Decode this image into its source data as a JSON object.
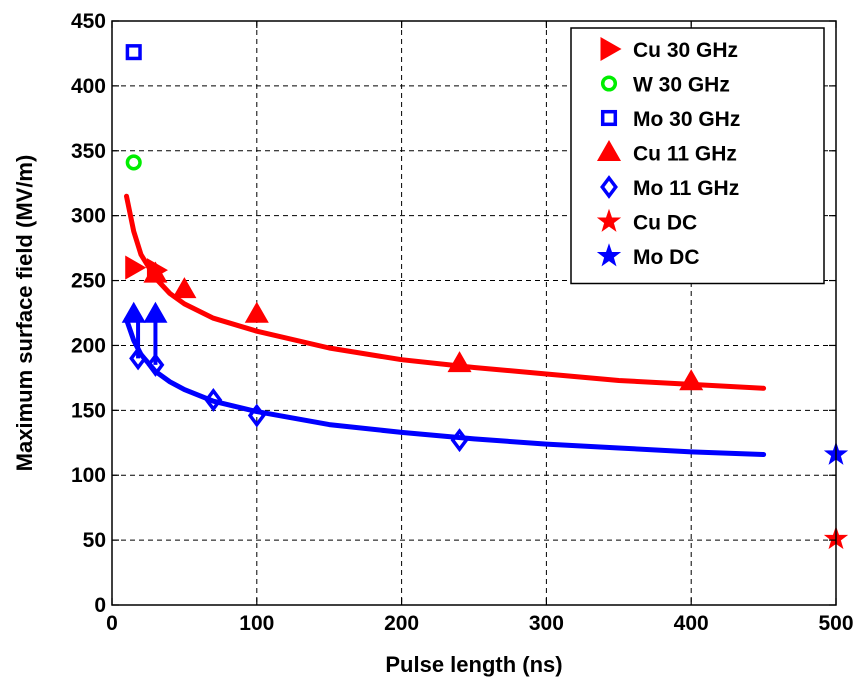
{
  "chart_data": {
    "type": "scatter",
    "title": "",
    "xlabel": "Pulse length (ns)",
    "ylabel": "Maximum surface field (MV/m)",
    "xlim": [
      0,
      500
    ],
    "ylim": [
      0,
      450
    ],
    "xticks": [
      0,
      100,
      200,
      300,
      400,
      500
    ],
    "yticks": [
      0,
      50,
      100,
      150,
      200,
      250,
      300,
      350,
      400,
      450
    ],
    "grid": true,
    "legend_position": "top-right",
    "series": [
      {
        "name": "Cu 30 GHz",
        "marker": "triangle-right",
        "color": "#ff0000",
        "filled": true,
        "x": [
          15,
          30
        ],
        "y": [
          260,
          258
        ]
      },
      {
        "name": "W 30 GHz",
        "marker": "circle",
        "color": "#00ee00",
        "filled": false,
        "x": [
          15
        ],
        "y": [
          341
        ]
      },
      {
        "name": "Mo 30 GHz",
        "marker": "square",
        "color": "#0000ff",
        "filled": false,
        "x": [
          15
        ],
        "y": [
          426
        ]
      },
      {
        "name": "Cu 11 GHz",
        "marker": "triangle-up",
        "color": "#ff0000",
        "filled": true,
        "x": [
          30,
          50,
          100,
          240,
          400
        ],
        "y": [
          255,
          243,
          224,
          186,
          172
        ]
      },
      {
        "name": "Mo 11 GHz",
        "marker": "diamond",
        "color": "#0000ff",
        "filled": false,
        "x": [
          18,
          30,
          70,
          100,
          240
        ],
        "y": [
          190,
          185,
          158,
          146,
          127
        ]
      },
      {
        "name": "Cu DC",
        "marker": "star",
        "color": "#ff0000",
        "filled": true,
        "x": [
          500
        ],
        "y": [
          51
        ]
      },
      {
        "name": "Mo DC",
        "marker": "star",
        "color": "#0000ff",
        "filled": true,
        "x": [
          500
        ],
        "y": [
          116
        ]
      }
    ],
    "extra_markers": [
      {
        "marker": "triangle-up",
        "color": "#0000ff",
        "filled": true,
        "x": [
          15,
          30
        ],
        "y": [
          224,
          224
        ]
      }
    ],
    "arrows": [
      {
        "color": "#0000ff",
        "x": 18,
        "y_from": 190,
        "y_to": 224
      },
      {
        "color": "#0000ff",
        "x": 30,
        "y_from": 185,
        "y_to": 224
      }
    ],
    "fit_curves": [
      {
        "color": "#ff0000",
        "x": [
          10,
          15,
          20,
          30,
          40,
          50,
          70,
          100,
          150,
          200,
          250,
          300,
          350,
          400,
          450
        ],
        "y": [
          315,
          288,
          270,
          252,
          240,
          232,
          221,
          211,
          198,
          189,
          183,
          178,
          173,
          170,
          167
        ]
      },
      {
        "color": "#0000ff",
        "x": [
          10,
          15,
          20,
          30,
          40,
          50,
          70,
          100,
          150,
          200,
          250,
          300,
          350,
          400,
          450
        ],
        "y": [
          220,
          204,
          193,
          180,
          172,
          166,
          157,
          149,
          139,
          133,
          128,
          124,
          121,
          118,
          116
        ]
      }
    ]
  }
}
